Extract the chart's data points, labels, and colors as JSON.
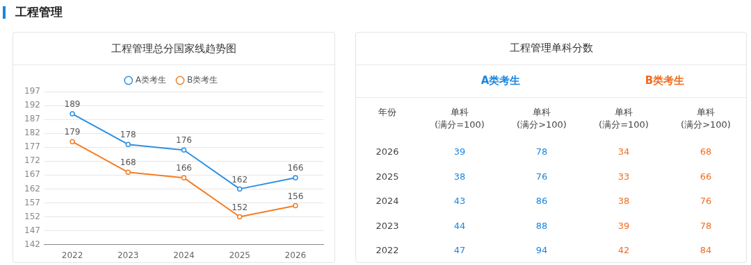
{
  "chart_data": [
    {
      "type": "line",
      "title": "工程管理总分国家线趋势图",
      "annotations": [
        "工程管理"
      ],
      "categories": [
        "2022",
        "2023",
        "2024",
        "2025",
        "2026"
      ],
      "series": [
        {
          "name": "A类考生",
          "color": "#2b90e2",
          "values": [
            189,
            178,
            176,
            162,
            166
          ]
        },
        {
          "name": "B类考生",
          "color": "#f27d24",
          "values": [
            179,
            168,
            166,
            152,
            156
          ]
        }
      ],
      "ylim": [
        142,
        197
      ],
      "yticks": [
        142,
        147,
        152,
        157,
        162,
        167,
        172,
        177,
        182,
        187,
        192,
        197
      ],
      "grid": "y",
      "legend": "top",
      "marker": "circle",
      "data_labels": true
    },
    {
      "type": "heatmap",
      "title": "工程管理单科分数",
      "subtitle": "A类考生",
      "ylabel": "年份",
      "color": "#1a86e0",
      "data_labels": true,
      "categories": [
        "单科\n(满分=100)",
        "单科\n(满分>100)"
      ],
      "y_categories": [
        "2026",
        "2025",
        "2024",
        "2023",
        "2022"
      ],
      "cells": [
        [
          39,
          78
        ],
        [
          38,
          76
        ],
        [
          43,
          86
        ],
        [
          44,
          88
        ],
        [
          47,
          94
        ]
      ]
    },
    {
      "type": "heatmap",
      "subtitle": "B类考生",
      "color": "#f26b1d",
      "data_labels": true,
      "categories": [
        "单科\n(满分=100)",
        "单科\n(满分>100)"
      ],
      "y_categories": [
        null,
        null,
        null,
        null,
        null
      ],
      "cells": [
        [
          34,
          68
        ],
        [
          33,
          66
        ],
        [
          38,
          76
        ],
        [
          39,
          78
        ],
        [
          42,
          84
        ]
      ]
    }
  ]
}
